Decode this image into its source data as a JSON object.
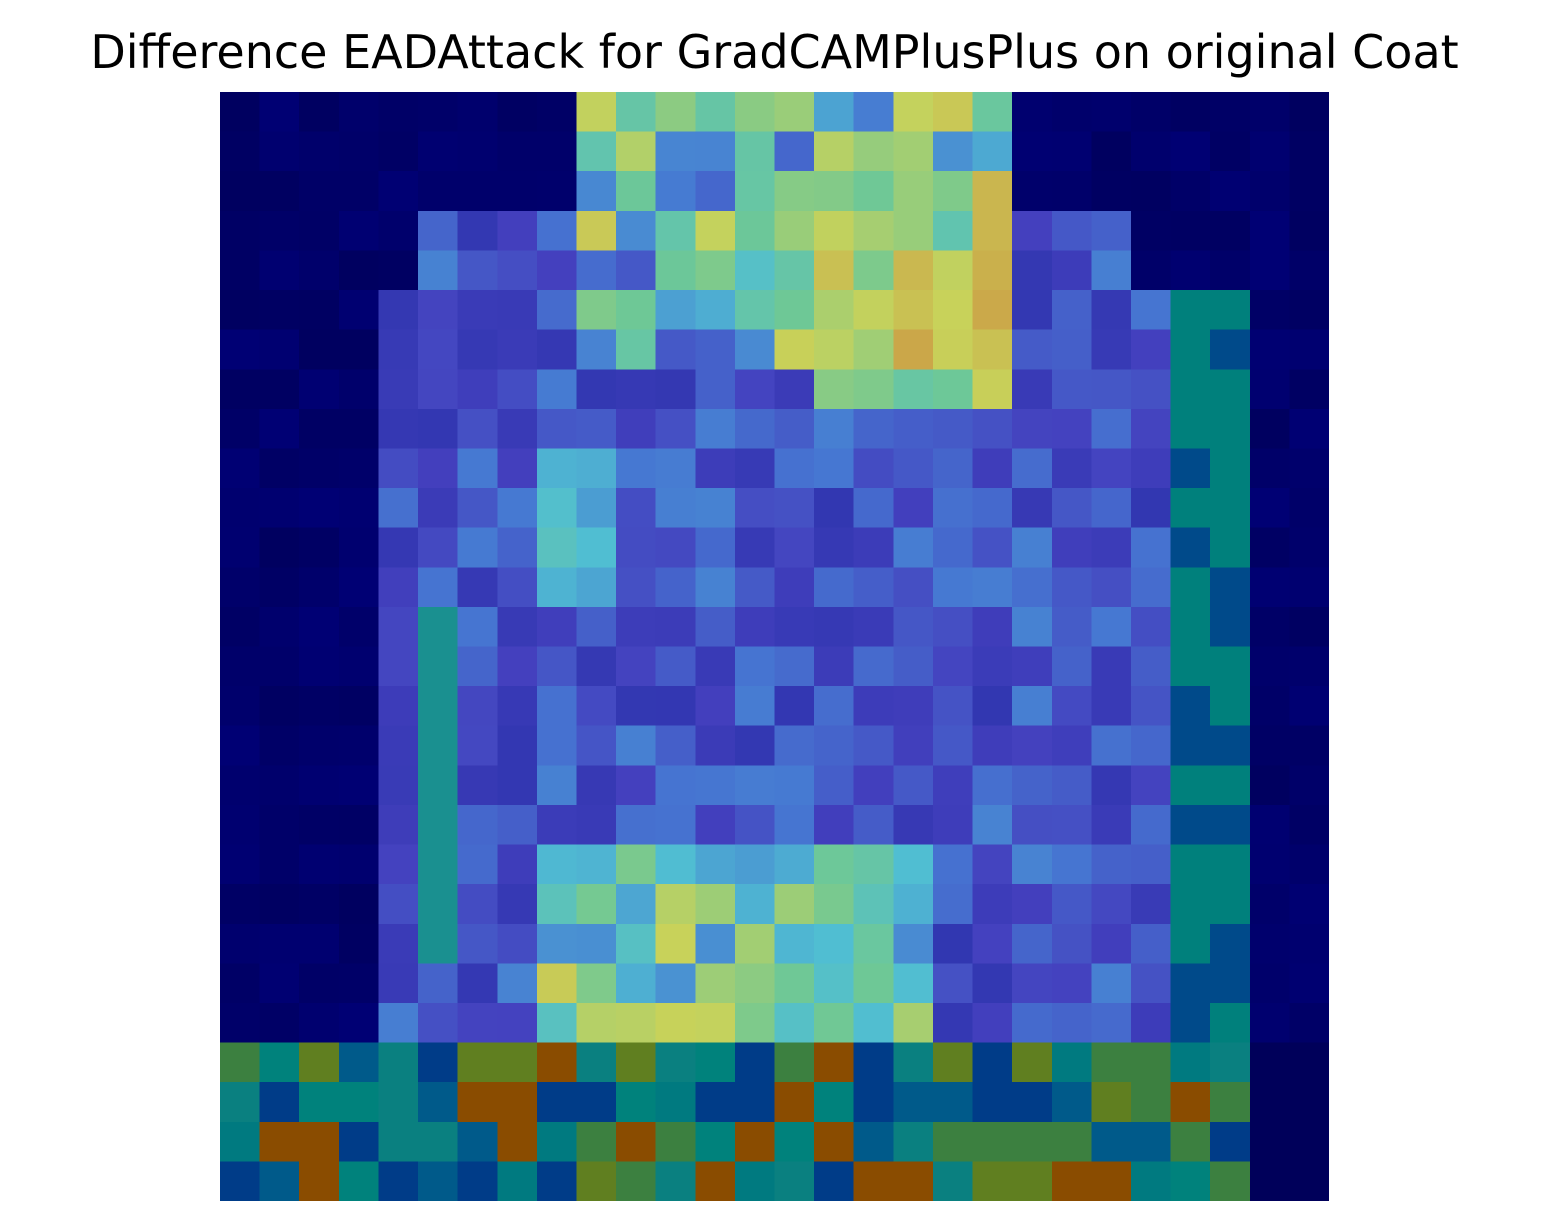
{
  "title": "Difference EADAttack for GradCAMPlusPlus on original Coat",
  "image": {
    "description_name": "heatmap-overlay",
    "grid_size": 28,
    "palette": {
      "dark_navy": "#00004e",
      "navy": "#00006c",
      "royal_blue": "#2c3cb4",
      "indigo": "#4040b8",
      "periwinkle": "#6a6ae0",
      "cyan": "#58d8e0",
      "teal": "#00807c",
      "green": "#3c8040",
      "olive": "#607f20",
      "yellow": "#c8d060",
      "orange": "#cc8840",
      "brown": "#8a3000"
    }
  }
}
